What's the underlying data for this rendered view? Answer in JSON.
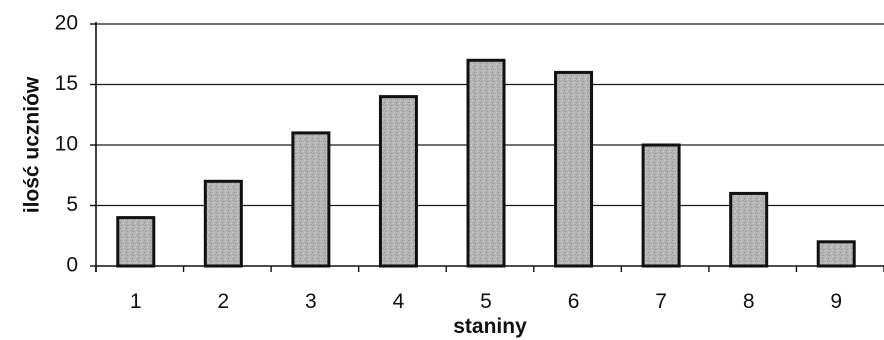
{
  "chart_data": {
    "type": "bar",
    "categories": [
      "1",
      "2",
      "3",
      "4",
      "5",
      "6",
      "7",
      "8",
      "9"
    ],
    "values": [
      4,
      7,
      11,
      14,
      17,
      16,
      10,
      6,
      2
    ],
    "title": "",
    "xlabel": "staniny",
    "ylabel": "ilość uczniów",
    "ylim": [
      0,
      20
    ],
    "yticks": [
      "0",
      "5",
      "10",
      "15",
      "20"
    ],
    "grid": true,
    "legend": "none",
    "bar_color": "#b8b8b8",
    "edge_color": "#111111"
  }
}
